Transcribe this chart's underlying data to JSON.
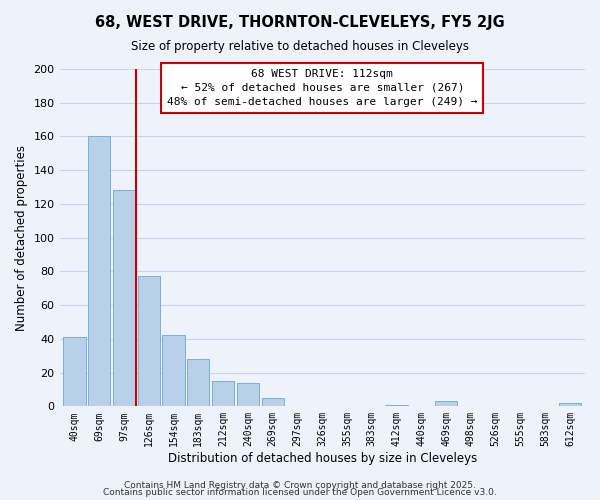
{
  "title": "68, WEST DRIVE, THORNTON-CLEVELEYS, FY5 2JG",
  "subtitle": "Size of property relative to detached houses in Cleveleys",
  "xlabel": "Distribution of detached houses by size in Cleveleys",
  "ylabel": "Number of detached properties",
  "bar_color": "#b8d0ea",
  "bar_edge_color": "#7aafd4",
  "categories": [
    "40sqm",
    "69sqm",
    "97sqm",
    "126sqm",
    "154sqm",
    "183sqm",
    "212sqm",
    "240sqm",
    "269sqm",
    "297sqm",
    "326sqm",
    "355sqm",
    "383sqm",
    "412sqm",
    "440sqm",
    "469sqm",
    "498sqm",
    "526sqm",
    "555sqm",
    "583sqm",
    "612sqm"
  ],
  "values": [
    41,
    160,
    128,
    77,
    42,
    28,
    15,
    14,
    5,
    0,
    0,
    0,
    0,
    1,
    0,
    3,
    0,
    0,
    0,
    0,
    2
  ],
  "vline_x": 2.5,
  "vline_color": "#cc0000",
  "annotation_title": "68 WEST DRIVE: 112sqm",
  "annotation_line1": "← 52% of detached houses are smaller (267)",
  "annotation_line2": "48% of semi-detached houses are larger (249) →",
  "ylim": [
    0,
    200
  ],
  "yticks": [
    0,
    20,
    40,
    60,
    80,
    100,
    120,
    140,
    160,
    180,
    200
  ],
  "footer1": "Contains HM Land Registry data © Crown copyright and database right 2025.",
  "footer2": "Contains public sector information licensed under the Open Government Licence v3.0.",
  "bg_color": "#eef2fb",
  "grid_color": "#c8d4ee"
}
